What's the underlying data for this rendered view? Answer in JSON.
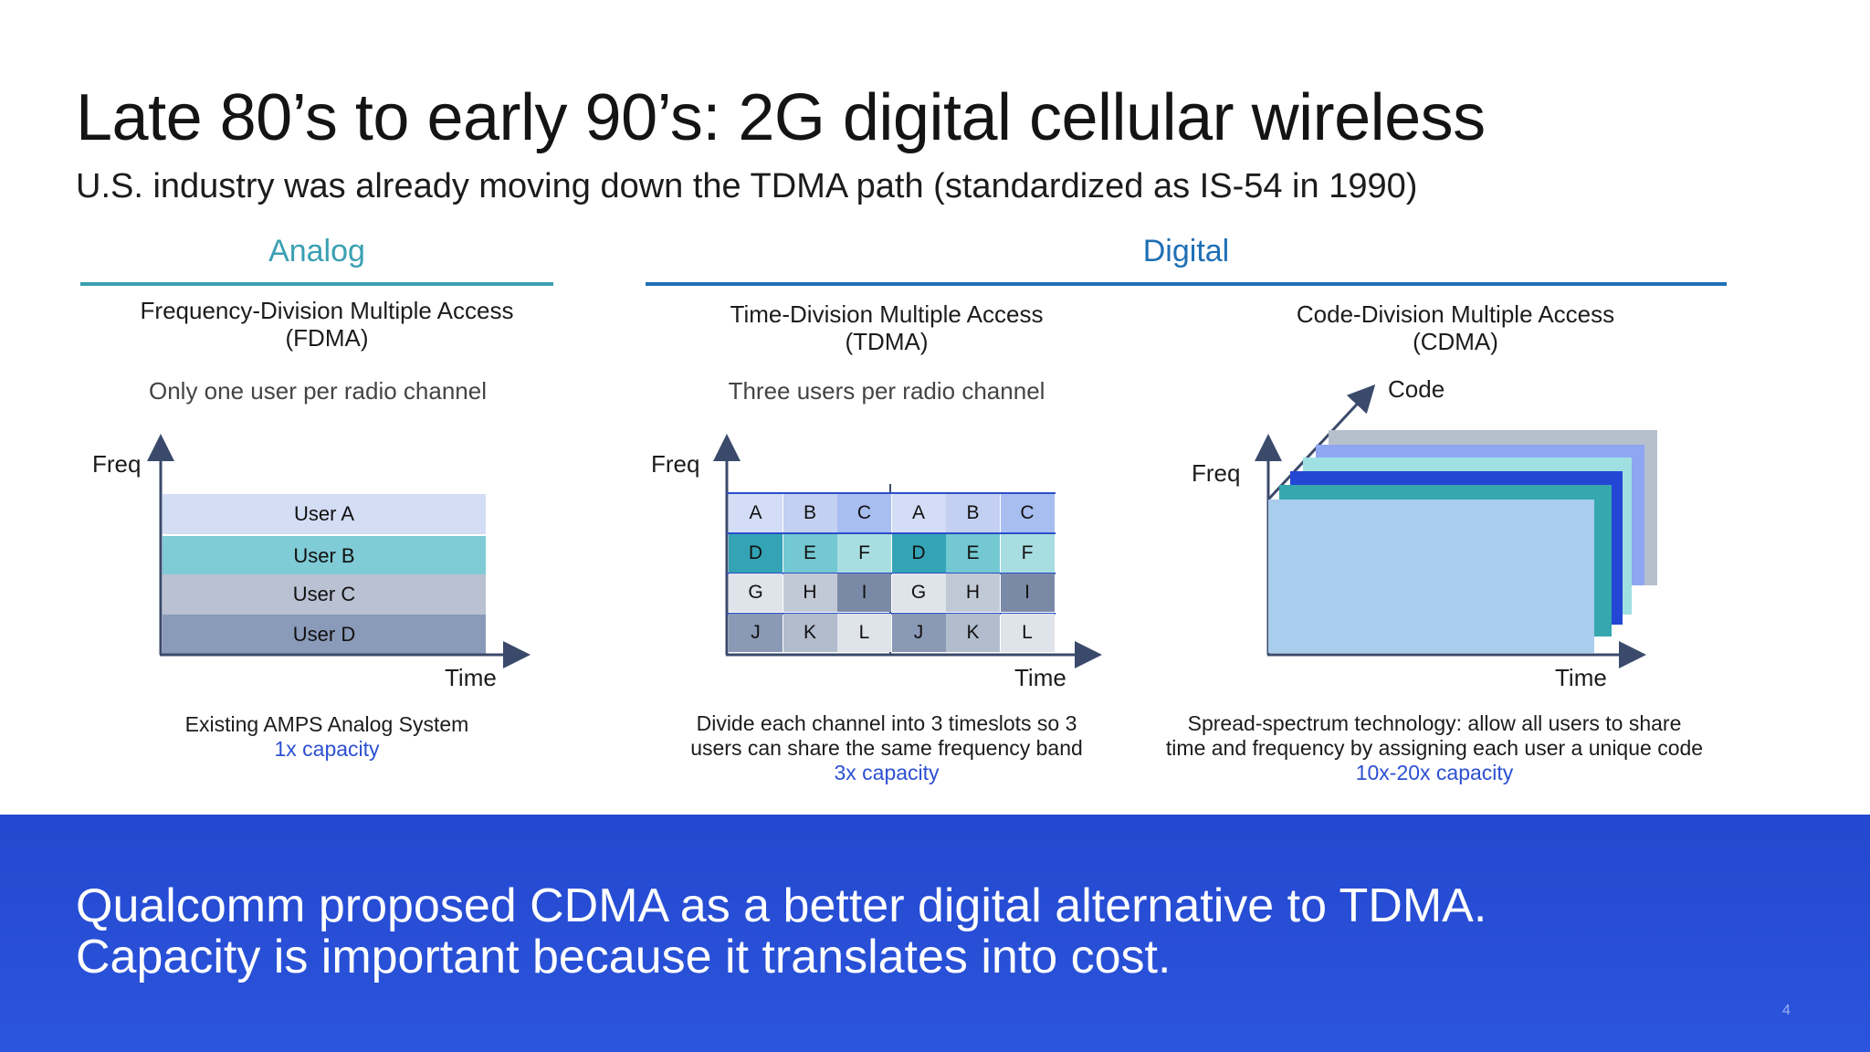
{
  "title": "Late 80’s to early 90’s: 2G digital cellular wireless",
  "subtitle": "U.S. industry was already moving down the TDMA path (standardized as IS-54 in 1990)",
  "sections": {
    "analog": {
      "label": "Analog",
      "color": "#3aa0b2"
    },
    "digital": {
      "label": "Digital",
      "color": "#1f6fb5"
    }
  },
  "fdma": {
    "heading_line1": "Frequency-Division Multiple Access",
    "heading_line2": "(FDMA)",
    "tagline": "Only one user per radio channel",
    "y_label": "Freq",
    "x_label": "Time",
    "bands": [
      {
        "label": "User A",
        "color": "#d3ddf4"
      },
      {
        "label": "User B",
        "color": "#7fcbd6"
      },
      {
        "label": "User C",
        "color": "#b9c1d2"
      },
      {
        "label": "User D",
        "color": "#8a9bb9"
      }
    ],
    "caption_line1": "Existing AMPS Analog System",
    "capacity": "1x capacity"
  },
  "tdma": {
    "heading_line1": "Time-Division Multiple Access",
    "heading_line2": "(TDMA)",
    "tagline": "Three users per radio channel",
    "y_label": "Freq",
    "x_label": "Time",
    "rows": [
      [
        {
          "l": "A",
          "c": "#d3ddf6"
        },
        {
          "l": "B",
          "c": "#c3d0f2"
        },
        {
          "l": "C",
          "c": "#a8bdf0"
        },
        {
          "l": "A",
          "c": "#d3ddf6"
        },
        {
          "l": "B",
          "c": "#c3d0f2"
        },
        {
          "l": "C",
          "c": "#a8bdf0"
        }
      ],
      [
        {
          "l": "D",
          "c": "#34a3b6"
        },
        {
          "l": "E",
          "c": "#74c8d2"
        },
        {
          "l": "F",
          "c": "#a8dde2"
        },
        {
          "l": "D",
          "c": "#34a3b6"
        },
        {
          "l": "E",
          "c": "#74c8d2"
        },
        {
          "l": "F",
          "c": "#a8dde2"
        }
      ],
      [
        {
          "l": "G",
          "c": "#dfe3ea"
        },
        {
          "l": "H",
          "c": "#c2c9d6"
        },
        {
          "l": "I",
          "c": "#7a8aa6"
        },
        {
          "l": "G",
          "c": "#dfe3ea"
        },
        {
          "l": "H",
          "c": "#c2c9d6"
        },
        {
          "l": "I",
          "c": "#7a8aa6"
        }
      ],
      [
        {
          "l": "J",
          "c": "#8a99b5"
        },
        {
          "l": "K",
          "c": "#b1bccc"
        },
        {
          "l": "L",
          "c": "#dfe3ea"
        },
        {
          "l": "J",
          "c": "#8a99b5"
        },
        {
          "l": "K",
          "c": "#b1bccc"
        },
        {
          "l": "L",
          "c": "#dfe3ea"
        }
      ]
    ],
    "caption_line1": "Divide each channel into 3 timeslots so 3",
    "caption_line2": "users can share the same frequency band",
    "capacity": "3x capacity"
  },
  "cdma": {
    "heading_line1": "Code-Division Multiple Access",
    "heading_line2": "(CDMA)",
    "y_label": "Freq",
    "x_label": "Time",
    "z_label": "Code",
    "layers": [
      "#b6bfcc",
      "#8fa6f3",
      "#9fe0e3",
      "#2446d4",
      "#36a7ae",
      "#a9cdec"
    ],
    "caption_line1": "Spread-spectrum technology: allow all users to share",
    "caption_line2": "time and frequency by assigning each user a unique code",
    "capacity": "10x-20x capacity"
  },
  "footer": {
    "line1": "Qualcomm proposed CDMA as a better digital alternative to TDMA.",
    "line2": "Capacity is important because it translates into cost."
  },
  "page_number": "4"
}
